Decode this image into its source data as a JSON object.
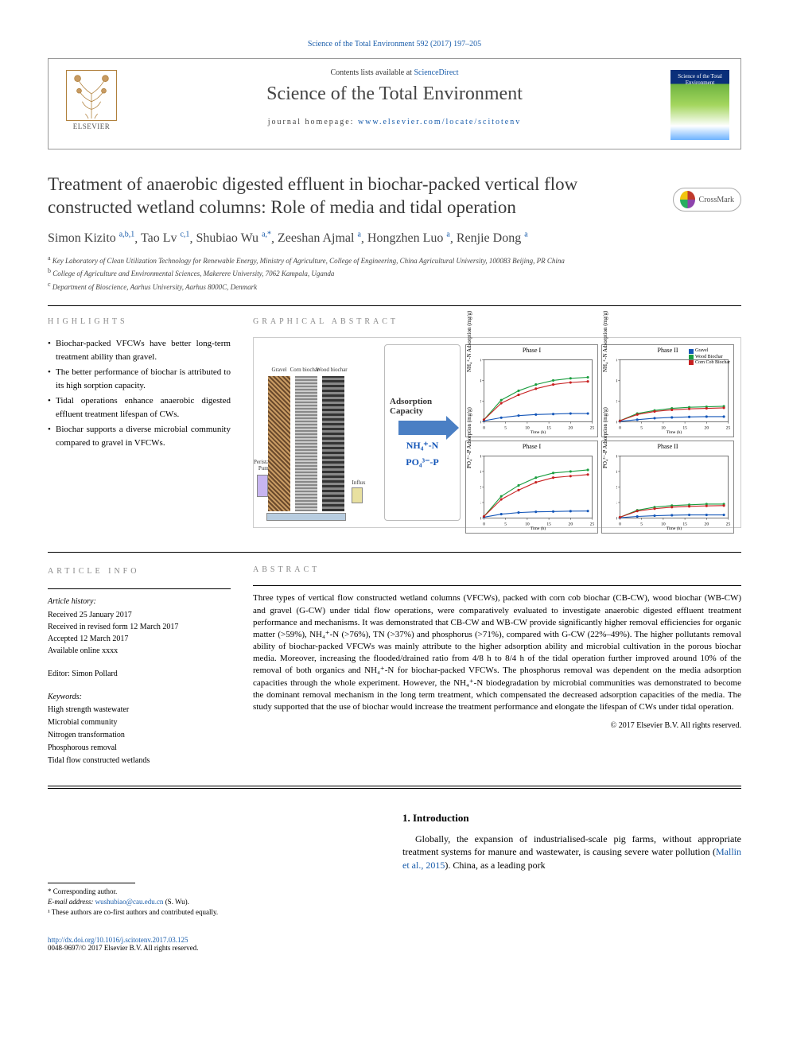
{
  "topLink": "Science of the Total Environment 592 (2017) 197–205",
  "header": {
    "contentsPrefix": "Contents lists available at ",
    "contentsLink": "ScienceDirect",
    "journalName": "Science of the Total Environment",
    "homepagePrefix": "journal homepage: ",
    "homepageUrl": "www.elsevier.com/locate/scitotenv",
    "publisher": "ELSEVIER",
    "thumbText": "Science of the Total Environment"
  },
  "title": "Treatment of anaerobic digested effluent in biochar-packed vertical flow constructed wetland columns: Role of media and tidal operation",
  "crossmark": "CrossMark",
  "authors": [
    {
      "name": "Simon Kizito",
      "aff": "a,b,1"
    },
    {
      "name": "Tao Lv",
      "aff": "c,1"
    },
    {
      "name": "Shubiao Wu",
      "aff": "a,*"
    },
    {
      "name": "Zeeshan Ajmal",
      "aff": "a"
    },
    {
      "name": "Hongzhen Luo",
      "aff": "a"
    },
    {
      "name": "Renjie Dong",
      "aff": "a"
    }
  ],
  "affiliations": [
    {
      "sup": "a",
      "text": "Key Laboratory of Clean Utilization Technology for Renewable Energy, Ministry of Agriculture, College of Engineering, China Agricultural University, 100083 Beijing, PR China"
    },
    {
      "sup": "b",
      "text": "College of Agriculture and Environmental Sciences, Makerere University, 7062 Kampala, Uganda"
    },
    {
      "sup": "c",
      "text": "Department of Bioscience, Aarhus University, Aarhus 8000C, Denmark"
    }
  ],
  "highlightsLabel": "HIGHLIGHTS",
  "highlights": [
    "Biochar-packed VFCWs have better long-term treatment ability than gravel.",
    "The better performance of biochar is attributed to its high sorption capacity.",
    "Tidal operations enhance anaerobic digested effluent treatment lifespan of CWs.",
    "Biochar supports a diverse microbial community compared to gravel in VFCWs."
  ],
  "gaLabel": "GRAPHICAL ABSTRACT",
  "ga": {
    "columns": [
      "Gravel",
      "Corn biochar",
      "Wood biochar"
    ],
    "pump": "Peristaltic Pump",
    "influx": "Influx",
    "adsorptionWord": "Adsorption Capacity",
    "formula1": "NH₄⁺-N",
    "formula2": "PO₄³⁻-P",
    "legend": [
      {
        "label": "Gravel",
        "color": "#1456b8",
        "shape": "diamond"
      },
      {
        "label": "Wood Biochar",
        "color": "#1a9d3f",
        "shape": "circle"
      },
      {
        "label": "Corn Cob Biochar",
        "color": "#c72020",
        "shape": "square"
      }
    ],
    "charts": [
      {
        "phase": "Phase I",
        "ylab": "NH₄⁺-N Adsorption (mg/g)",
        "ymax": 6
      },
      {
        "phase": "Phase II",
        "ylab": "NH₄⁺-N Adsorption (mg/g)",
        "ymax": 6
      },
      {
        "phase": "Phase I",
        "ylab": "PO₄³⁻-P Adsorption (mg/g)",
        "ymax": 4
      },
      {
        "phase": "Phase II",
        "ylab": "PO₄³⁻-P Adsorption (mg/g)",
        "ymax": 4
      }
    ],
    "xticks": [
      0,
      5,
      10,
      15,
      20,
      25
    ],
    "xlabel": "Time (h)",
    "series": {
      "phase1_nh4": {
        "gravel": [
          [
            0,
            0.1
          ],
          [
            4,
            0.4
          ],
          [
            8,
            0.6
          ],
          [
            12,
            0.7
          ],
          [
            16,
            0.75
          ],
          [
            20,
            0.8
          ],
          [
            24,
            0.8
          ]
        ],
        "wood": [
          [
            0,
            0.2
          ],
          [
            4,
            2.1
          ],
          [
            8,
            3.0
          ],
          [
            12,
            3.6
          ],
          [
            16,
            4.0
          ],
          [
            20,
            4.2
          ],
          [
            24,
            4.3
          ]
        ],
        "corn": [
          [
            0,
            0.2
          ],
          [
            4,
            1.8
          ],
          [
            8,
            2.6
          ],
          [
            12,
            3.2
          ],
          [
            16,
            3.6
          ],
          [
            20,
            3.8
          ],
          [
            24,
            3.9
          ]
        ]
      },
      "phase2_nh4": {
        "gravel": [
          [
            0,
            0.05
          ],
          [
            4,
            0.2
          ],
          [
            8,
            0.35
          ],
          [
            12,
            0.42
          ],
          [
            16,
            0.47
          ],
          [
            20,
            0.5
          ],
          [
            24,
            0.5
          ]
        ],
        "wood": [
          [
            0,
            0.1
          ],
          [
            4,
            0.8
          ],
          [
            8,
            1.1
          ],
          [
            12,
            1.3
          ],
          [
            16,
            1.4
          ],
          [
            20,
            1.45
          ],
          [
            24,
            1.5
          ]
        ],
        "corn": [
          [
            0,
            0.1
          ],
          [
            4,
            0.7
          ],
          [
            8,
            1.0
          ],
          [
            12,
            1.15
          ],
          [
            16,
            1.25
          ],
          [
            20,
            1.3
          ],
          [
            24,
            1.35
          ]
        ]
      },
      "phase1_po4": {
        "gravel": [
          [
            0,
            0.05
          ],
          [
            4,
            0.25
          ],
          [
            8,
            0.35
          ],
          [
            12,
            0.4
          ],
          [
            16,
            0.42
          ],
          [
            20,
            0.44
          ],
          [
            24,
            0.45
          ]
        ],
        "wood": [
          [
            0,
            0.1
          ],
          [
            4,
            1.4
          ],
          [
            8,
            2.1
          ],
          [
            12,
            2.6
          ],
          [
            16,
            2.9
          ],
          [
            20,
            3.0
          ],
          [
            24,
            3.1
          ]
        ],
        "corn": [
          [
            0,
            0.1
          ],
          [
            4,
            1.2
          ],
          [
            8,
            1.8
          ],
          [
            12,
            2.3
          ],
          [
            16,
            2.6
          ],
          [
            20,
            2.7
          ],
          [
            24,
            2.8
          ]
        ]
      },
      "phase2_po4": {
        "gravel": [
          [
            0,
            0.02
          ],
          [
            4,
            0.1
          ],
          [
            8,
            0.15
          ],
          [
            12,
            0.18
          ],
          [
            16,
            0.2
          ],
          [
            20,
            0.2
          ],
          [
            24,
            0.2
          ]
        ],
        "wood": [
          [
            0,
            0.05
          ],
          [
            4,
            0.5
          ],
          [
            8,
            0.7
          ],
          [
            12,
            0.8
          ],
          [
            16,
            0.85
          ],
          [
            20,
            0.9
          ],
          [
            24,
            0.9
          ]
        ],
        "corn": [
          [
            0,
            0.05
          ],
          [
            4,
            0.45
          ],
          [
            8,
            0.6
          ],
          [
            12,
            0.7
          ],
          [
            16,
            0.75
          ],
          [
            20,
            0.78
          ],
          [
            24,
            0.8
          ]
        ]
      }
    }
  },
  "infoLabel": "ARTICLE INFO",
  "abstractLabel": "ABSTRACT",
  "articleInfo": {
    "historyHdr": "Article history:",
    "history": [
      "Received 25 January 2017",
      "Received in revised form 12 March 2017",
      "Accepted 12 March 2017",
      "Available online xxxx"
    ],
    "editorLabel": "Editor:",
    "editor": "Simon Pollard",
    "keywordsHdr": "Keywords:",
    "keywords": [
      "High strength wastewater",
      "Microbial community",
      "Nitrogen transformation",
      "Phosphorous removal",
      "Tidal flow constructed wetlands"
    ]
  },
  "abstract": "Three types of vertical flow constructed wetland columns (VFCWs), packed with corn cob biochar (CB-CW), wood biochar (WB-CW) and gravel (G-CW) under tidal flow operations, were comparatively evaluated to investigate anaerobic digested effluent treatment performance and mechanisms. It was demonstrated that CB-CW and WB-CW provide significantly higher removal efficiencies for organic matter (>59%), NH₄⁺-N (>76%), TN (>37%) and phosphorus (>71%), compared with G-CW (22%–49%). The higher pollutants removal ability of biochar-packed VFCWs was mainly attribute to the higher adsorption ability and microbial cultivation in the porous biochar media. Moreover, increasing the flooded/drained ratio from 4/8 h to 8/4 h of the tidal operation further improved around 10% of the removal of both organics and NH₄⁺-N for biochar-packed VFCWs. The phosphorus removal was dependent on the media adsorption capacities through the whole experiment. However, the NH₄⁺-N biodegradation by microbial communities was demonstrated to become the dominant removal mechanism in the long term treatment, which compensated the decreased adsorption capacities of the media. The study supported that the use of biochar would increase the treatment performance and elongate the lifespan of CWs under tidal operation.",
  "copyright": "© 2017 Elsevier B.V. All rights reserved.",
  "intro": {
    "heading": "1. Introduction",
    "paraPrefix": "Globally, the expansion of industrialised-scale pig farms, without appropriate treatment systems for manure and wastewater, is causing severe water pollution (",
    "cite": "Mallin et al., 2015",
    "paraSuffix": "). China, as a leading pork"
  },
  "footnotes": {
    "corr": "* Corresponding author.",
    "emailLabel": "E-mail address:",
    "email": "wushubiao@cau.edu.cn",
    "emailName": "(S. Wu).",
    "cofirst": "¹ These authors are co-first authors and contributed equally."
  },
  "bottom": {
    "doi": "http://dx.doi.org/10.1016/j.scitotenv.2017.03.125",
    "issn": "0048-9697/© 2017 Elsevier B.V. All rights reserved."
  }
}
